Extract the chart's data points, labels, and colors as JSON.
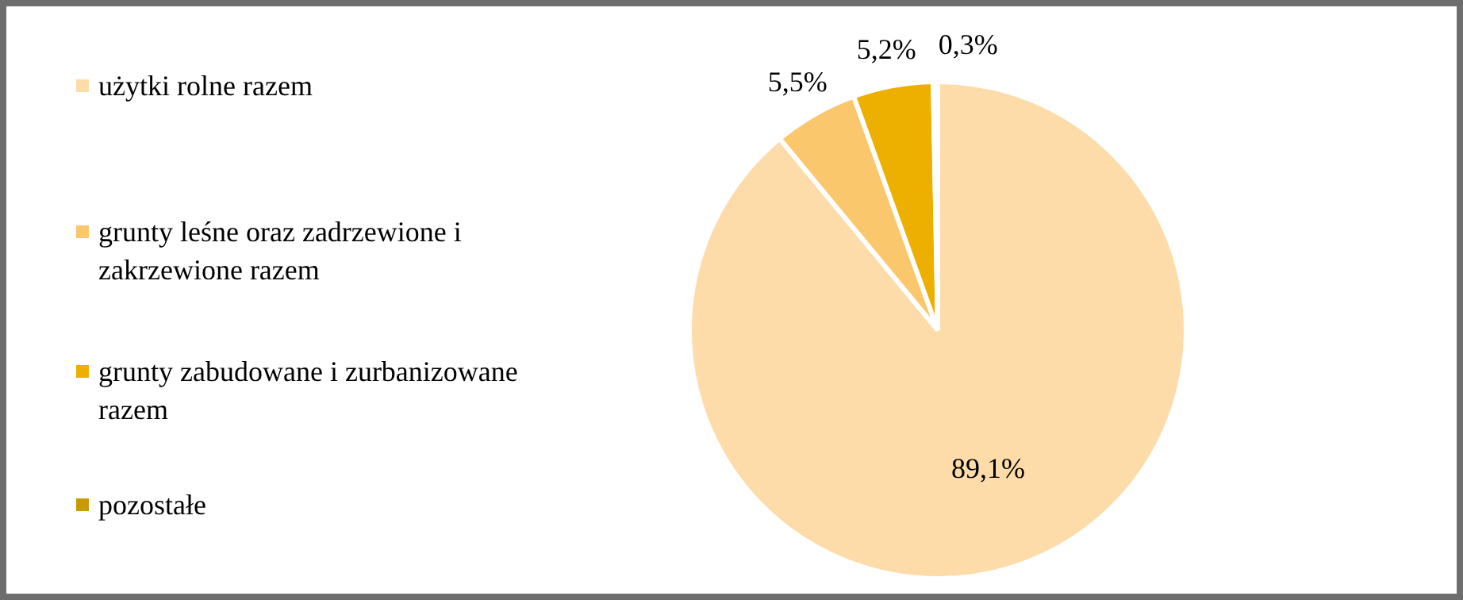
{
  "chart_data": {
    "type": "pie",
    "categories": [
      "użytki rolne razem",
      "grunty leśne oraz zadrzewione i zakrzewione razem",
      "grunty zabudowane i zurbanizowane razem",
      "pozostałe"
    ],
    "values": [
      89.1,
      5.5,
      5.2,
      0.3
    ],
    "value_labels": [
      "89,1%",
      "5,5%",
      "5,2%",
      "0,3%"
    ],
    "colors": [
      "#fddcaa",
      "#fbc76c",
      "#eeb000",
      "#c99a06"
    ],
    "legend": "left"
  }
}
